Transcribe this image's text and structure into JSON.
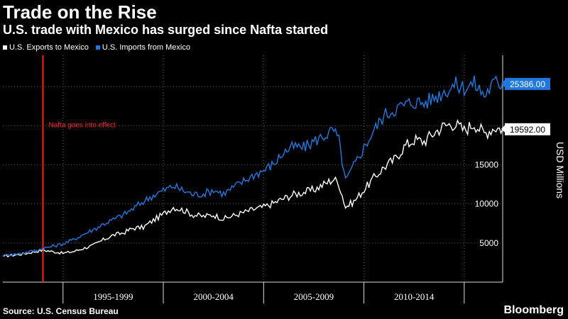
{
  "header": {
    "title": "Trade on the Rise",
    "subtitle": "U.S. trade with Mexico has surged since Nafta started"
  },
  "footer": {
    "source": "Source: U.S. Census Bureau",
    "brand": "Bloomberg"
  },
  "colors": {
    "exports": "#ffffff",
    "imports": "#1f78e0",
    "annotation": "#ff2020",
    "background": "#000000"
  },
  "chart_data": {
    "type": "line",
    "title": "Trade on the Rise",
    "subtitle": "U.S. trade with Mexico has surged since Nafta started",
    "xlabel": "",
    "ylabel": "USD Millions",
    "ylim": [
      0,
      29000
    ],
    "y_ticks": [
      "5000",
      "10000",
      "15000"
    ],
    "x_tick_labels": [
      "1995-1999",
      "2000-2004",
      "2005-2009",
      "2010-2014"
    ],
    "x_range": [
      "1992-01",
      "2016-12"
    ],
    "grid": true,
    "legend_position": "top-left",
    "annotation": {
      "label": "Nafta goes into effect",
      "date": "1994-01"
    },
    "series": [
      {
        "name": "U.S. Exports to Mexico",
        "color": "#ffffff",
        "last_value_label": "19592.00",
        "points": [
          [
            "1992-01",
            3300
          ],
          [
            "1993-01",
            3600
          ],
          [
            "1994-01",
            4100
          ],
          [
            "1995-01",
            3700
          ],
          [
            "1995-07",
            3900
          ],
          [
            "1996-01",
            4300
          ],
          [
            "1996-07",
            4700
          ],
          [
            "1997-01",
            5400
          ],
          [
            "1997-07",
            6000
          ],
          [
            "1998-01",
            6300
          ],
          [
            "1998-07",
            6900
          ],
          [
            "1999-01",
            7000
          ],
          [
            "1999-07",
            7900
          ],
          [
            "2000-01",
            8700
          ],
          [
            "2000-07",
            9600
          ],
          [
            "2001-01",
            9200
          ],
          [
            "2001-07",
            8600
          ],
          [
            "2002-01",
            8400
          ],
          [
            "2002-07",
            8600
          ],
          [
            "2003-01",
            8100
          ],
          [
            "2003-07",
            8500
          ],
          [
            "2004-01",
            8900
          ],
          [
            "2004-07",
            9300
          ],
          [
            "2005-01",
            9600
          ],
          [
            "2005-07",
            10100
          ],
          [
            "2006-01",
            10700
          ],
          [
            "2006-07",
            11200
          ],
          [
            "2007-01",
            11500
          ],
          [
            "2007-07",
            11800
          ],
          [
            "2008-01",
            12500
          ],
          [
            "2008-07",
            13200
          ],
          [
            "2008-10",
            12600
          ],
          [
            "2009-02",
            9600
          ],
          [
            "2009-07",
            10300
          ],
          [
            "2010-01",
            11800
          ],
          [
            "2010-07",
            13300
          ],
          [
            "2011-01",
            14700
          ],
          [
            "2011-07",
            15600
          ],
          [
            "2012-01",
            17300
          ],
          [
            "2012-07",
            18200
          ],
          [
            "2013-01",
            18000
          ],
          [
            "2013-07",
            19100
          ],
          [
            "2014-01",
            20000
          ],
          [
            "2014-07",
            20300
          ],
          [
            "2015-01",
            19400
          ],
          [
            "2015-07",
            20300
          ],
          [
            "2016-01",
            19000
          ],
          [
            "2016-07",
            19800
          ],
          [
            "2016-12",
            19592
          ]
        ]
      },
      {
        "name": "U.S. Imports from Mexico",
        "color": "#1f78e0",
        "last_value_label": "25386.00",
        "points": [
          [
            "1992-01",
            3400
          ],
          [
            "1993-01",
            3700
          ],
          [
            "1994-01",
            4300
          ],
          [
            "1995-01",
            4900
          ],
          [
            "1995-07",
            5400
          ],
          [
            "1996-01",
            6100
          ],
          [
            "1996-07",
            6700
          ],
          [
            "1997-01",
            7400
          ],
          [
            "1997-07",
            8000
          ],
          [
            "1998-01",
            8600
          ],
          [
            "1998-07",
            9400
          ],
          [
            "1999-01",
            10300
          ],
          [
            "1999-07",
            11100
          ],
          [
            "2000-01",
            11700
          ],
          [
            "2000-07",
            12300
          ],
          [
            "2001-01",
            11700
          ],
          [
            "2001-07",
            11200
          ],
          [
            "2002-01",
            11300
          ],
          [
            "2002-07",
            11800
          ],
          [
            "2003-01",
            11300
          ],
          [
            "2003-07",
            12100
          ],
          [
            "2004-01",
            12900
          ],
          [
            "2004-07",
            13700
          ],
          [
            "2005-01",
            14300
          ],
          [
            "2005-07",
            15100
          ],
          [
            "2006-01",
            16600
          ],
          [
            "2006-07",
            17300
          ],
          [
            "2007-01",
            17200
          ],
          [
            "2007-07",
            18000
          ],
          [
            "2008-01",
            18700
          ],
          [
            "2008-07",
            19400
          ],
          [
            "2008-10",
            18100
          ],
          [
            "2009-02",
            12900
          ],
          [
            "2009-07",
            14900
          ],
          [
            "2010-01",
            17200
          ],
          [
            "2010-07",
            19400
          ],
          [
            "2011-01",
            21300
          ],
          [
            "2011-07",
            22100
          ],
          [
            "2012-01",
            22600
          ],
          [
            "2012-07",
            23100
          ],
          [
            "2013-01",
            22900
          ],
          [
            "2013-07",
            23600
          ],
          [
            "2014-01",
            24400
          ],
          [
            "2014-07",
            25200
          ],
          [
            "2015-01",
            24900
          ],
          [
            "2015-07",
            25400
          ],
          [
            "2016-01",
            23900
          ],
          [
            "2016-07",
            25500
          ],
          [
            "2016-12",
            25386
          ]
        ]
      }
    ]
  }
}
